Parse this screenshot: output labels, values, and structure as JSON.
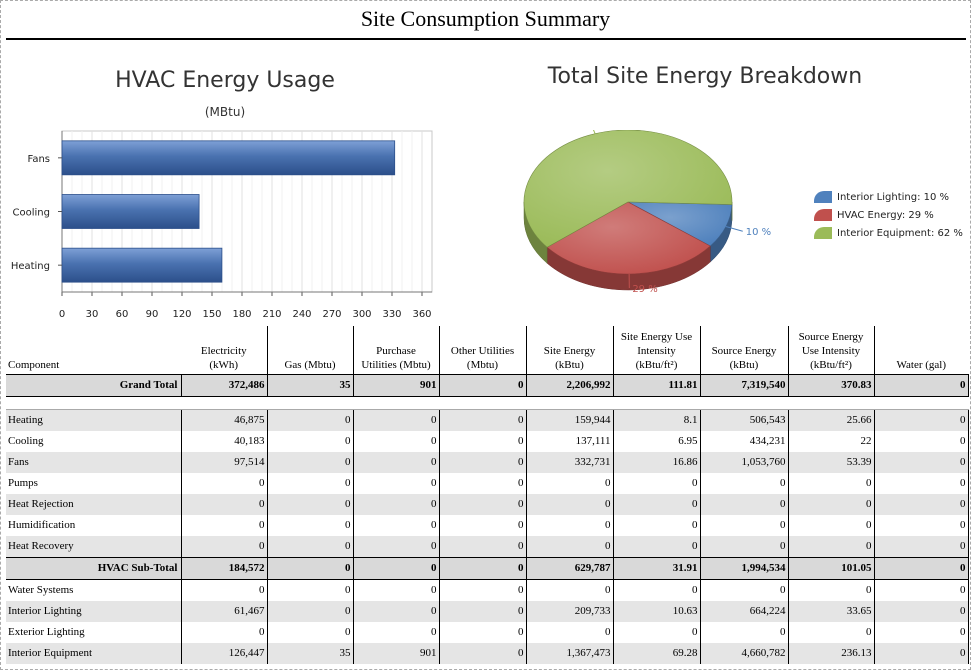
{
  "report_title": "Site Consumption Summary",
  "bar_chart": {
    "title": "HVAC Energy Usage",
    "subtitle": "(MBtu)"
  },
  "pie_chart": {
    "title": "Total Site Energy Breakdown"
  },
  "chart_data": [
    {
      "type": "bar",
      "orientation": "horizontal",
      "title": "HVAC Energy Usage",
      "subtitle": "(MBtu)",
      "categories": [
        "Fans",
        "Cooling",
        "Heating"
      ],
      "values": [
        332.7,
        137.1,
        159.9
      ],
      "xlim": [
        0,
        370
      ],
      "xticks": [
        "0",
        "30",
        "60",
        "90",
        "120",
        "150",
        "180",
        "210",
        "240",
        "270",
        "300",
        "330",
        "360"
      ],
      "grid": true,
      "color": "#4a72b0"
    },
    {
      "type": "pie",
      "title": "Total Site Energy Breakdown",
      "slices": [
        {
          "label": "Interior Lighting: 10 %",
          "pct_label": "10 %",
          "value": 10,
          "color": "#4f81bd"
        },
        {
          "label": "HVAC Energy: 29 %",
          "pct_label": "29 %",
          "value": 29,
          "color": "#c0504d"
        },
        {
          "label": "Interior Equipment: 62 %",
          "pct_label": "62 %",
          "value": 62,
          "color": "#9bbb59"
        }
      ],
      "legend": "right"
    }
  ],
  "table": {
    "headers": [
      "Component",
      "Electricity\n(kWh)",
      "Gas (Mbtu)",
      "Purchase\nUtilities (Mbtu)",
      "Other Utilities\n(Mbtu)",
      "Site Energy\n(kBtu)",
      "Site Energy Use\nIntensity\n(kBtu/ft²)",
      "Source Energy\n(kBtu)",
      "Source Energy\nUse Intensity\n(kBtu/ft²)",
      "Water (gal)"
    ],
    "grand_total": [
      "Grand Total",
      "372,486",
      "35",
      "901",
      "0",
      "2,206,992",
      "111.81",
      "7,319,540",
      "370.83",
      "0"
    ],
    "hvac_rows": [
      [
        "Heating",
        "46,875",
        "0",
        "0",
        "0",
        "159,944",
        "8.1",
        "506,543",
        "25.66",
        "0"
      ],
      [
        "Cooling",
        "40,183",
        "0",
        "0",
        "0",
        "137,111",
        "6.95",
        "434,231",
        "22",
        "0"
      ],
      [
        "Fans",
        "97,514",
        "0",
        "0",
        "0",
        "332,731",
        "16.86",
        "1,053,760",
        "53.39",
        "0"
      ],
      [
        "Pumps",
        "0",
        "0",
        "0",
        "0",
        "0",
        "0",
        "0",
        "0",
        "0"
      ],
      [
        "Heat Rejection",
        "0",
        "0",
        "0",
        "0",
        "0",
        "0",
        "0",
        "0",
        "0"
      ],
      [
        "Humidification",
        "0",
        "0",
        "0",
        "0",
        "0",
        "0",
        "0",
        "0",
        "0"
      ],
      [
        "Heat Recovery",
        "0",
        "0",
        "0",
        "0",
        "0",
        "0",
        "0",
        "0",
        "0"
      ]
    ],
    "hvac_subtotal": [
      "HVAC Sub-Total",
      "184,572",
      "0",
      "0",
      "0",
      "629,787",
      "31.91",
      "1,994,534",
      "101.05",
      "0"
    ],
    "other_rows": [
      [
        "Water Systems",
        "0",
        "0",
        "0",
        "0",
        "0",
        "0",
        "0",
        "0",
        "0"
      ],
      [
        "Interior Lighting",
        "61,467",
        "0",
        "0",
        "0",
        "209,733",
        "10.63",
        "664,224",
        "33.65",
        "0"
      ],
      [
        "Exterior Lighting",
        "0",
        "0",
        "0",
        "0",
        "0",
        "0",
        "0",
        "0",
        "0"
      ],
      [
        "Interior Equipment",
        "126,447",
        "35",
        "901",
        "0",
        "1,367,473",
        "69.28",
        "4,660,782",
        "236.13",
        "0"
      ]
    ]
  }
}
